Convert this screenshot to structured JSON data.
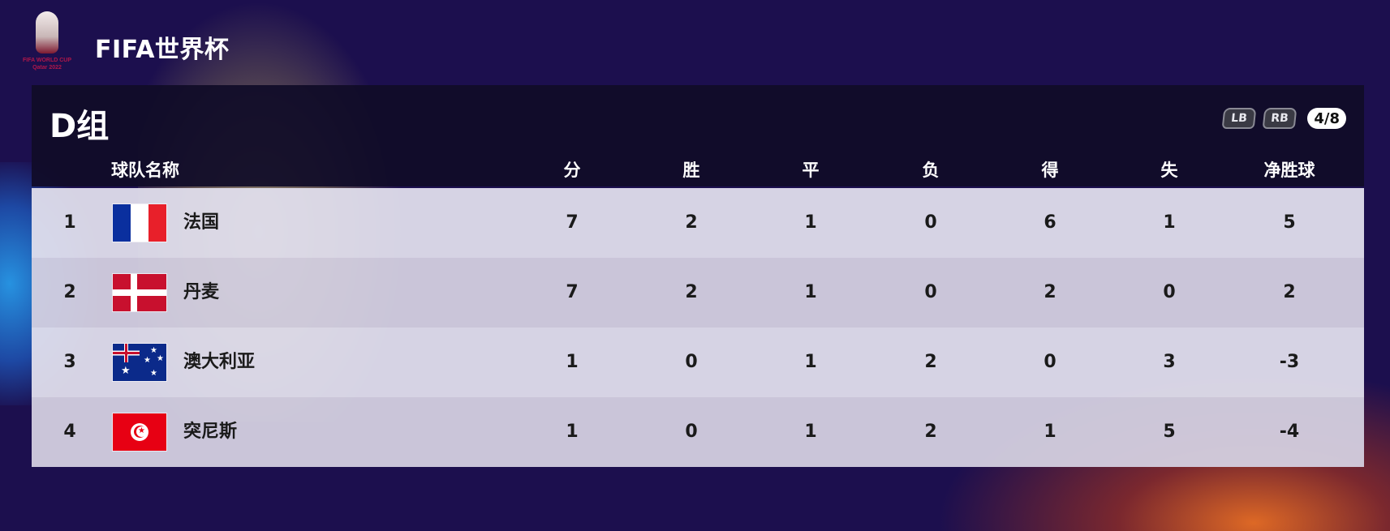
{
  "app": {
    "title": "FIFA世界杯",
    "logo_text_line1": "FIFA WORLD CUP",
    "logo_text_line2": "Qatar 2022"
  },
  "group": {
    "title": "D组",
    "controls": {
      "lb_label": "LB",
      "rb_label": "RB",
      "page_indicator": "4/8"
    }
  },
  "table": {
    "headers": {
      "team": "球队名称",
      "points": "分",
      "wins": "胜",
      "draws": "平",
      "losses": "负",
      "goals_for": "得",
      "goals_against": "失",
      "goal_diff": "净胜球"
    },
    "rows": [
      {
        "rank": "1",
        "flag": "france-flag-icon",
        "team": "法国",
        "points": "7",
        "wins": "2",
        "draws": "1",
        "losses": "0",
        "goals_for": "6",
        "goals_against": "1",
        "goal_diff": "5"
      },
      {
        "rank": "2",
        "flag": "denmark-flag-icon",
        "team": "丹麦",
        "points": "7",
        "wins": "2",
        "draws": "1",
        "losses": "0",
        "goals_for": "2",
        "goals_against": "0",
        "goal_diff": "2"
      },
      {
        "rank": "3",
        "flag": "australia-flag-icon",
        "team": "澳大利亚",
        "points": "1",
        "wins": "0",
        "draws": "1",
        "losses": "2",
        "goals_for": "0",
        "goals_against": "3",
        "goal_diff": "-3"
      },
      {
        "rank": "4",
        "flag": "tunisia-flag-icon",
        "team": "突尼斯",
        "points": "1",
        "wins": "0",
        "draws": "1",
        "losses": "2",
        "goals_for": "1",
        "goals_against": "5",
        "goal_diff": "-4"
      }
    ]
  },
  "colors": {
    "background": "#1c0f4e",
    "header_bar": "#100c28",
    "row_light": "#e0deec",
    "row_dark": "#d4d0e0"
  }
}
